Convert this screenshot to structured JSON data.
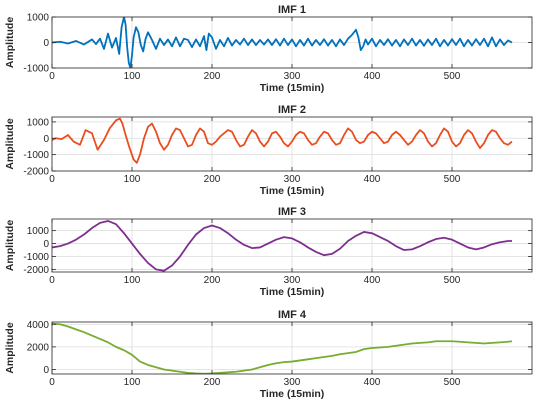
{
  "chart_data": [
    {
      "type": "line",
      "title": "IMF 1",
      "xlabel": "Time (15min)",
      "ylabel": "Amplitude",
      "xlim": [
        0,
        600
      ],
      "ylim": [
        -1000,
        1000
      ],
      "xticks": [
        0,
        100,
        200,
        300,
        400,
        500
      ],
      "yticks": [
        -1000,
        0,
        1000
      ],
      "grid": true,
      "color": "#0072BD",
      "series": [
        {
          "x": [
            0,
            10,
            20,
            30,
            40,
            50,
            55,
            60,
            65,
            70,
            75,
            80,
            84,
            87,
            90,
            92,
            94,
            96,
            98,
            100,
            102,
            105,
            108,
            111,
            114,
            117,
            120,
            125,
            130,
            135,
            140,
            145,
            150,
            155,
            160,
            165,
            170,
            175,
            180,
            185,
            190,
            193,
            196,
            200,
            205,
            210,
            215,
            220,
            225,
            230,
            235,
            240,
            245,
            250,
            255,
            260,
            265,
            270,
            275,
            280,
            285,
            290,
            295,
            300,
            305,
            310,
            315,
            320,
            325,
            330,
            335,
            340,
            345,
            350,
            355,
            360,
            365,
            370,
            375,
            380,
            383,
            386,
            389,
            392,
            395,
            400,
            405,
            410,
            415,
            420,
            425,
            430,
            435,
            440,
            445,
            450,
            455,
            460,
            465,
            470,
            475,
            480,
            485,
            490,
            495,
            500,
            505,
            510,
            515,
            520,
            525,
            530,
            535,
            540,
            545,
            550,
            555,
            560,
            565,
            570,
            575
          ],
          "y": [
            0,
            30,
            -40,
            60,
            -80,
            120,
            -60,
            150,
            -250,
            350,
            -200,
            180,
            -450,
            600,
            1000,
            700,
            -200,
            -800,
            -1000,
            -500,
            200,
            600,
            400,
            -100,
            -350,
            150,
            400,
            100,
            -250,
            150,
            -100,
            120,
            -150,
            200,
            -150,
            150,
            100,
            -180,
            120,
            -150,
            250,
            -300,
            350,
            200,
            -250,
            100,
            -150,
            180,
            -120,
            100,
            -80,
            150,
            -100,
            120,
            -100,
            100,
            -80,
            120,
            -100,
            130,
            -120,
            150,
            -100,
            120,
            -150,
            100,
            -120,
            150,
            -120,
            100,
            -100,
            130,
            -120,
            100,
            -150,
            120,
            -100,
            150,
            300,
            500,
            200,
            -300,
            -150,
            120,
            -80,
            150,
            -150,
            100,
            -100,
            130,
            -120,
            100,
            -150,
            120,
            -100,
            150,
            -120,
            100,
            -130,
            120,
            -100,
            150,
            -150,
            100,
            -120,
            130,
            -100,
            150,
            -150,
            100,
            -120,
            130,
            -100,
            150,
            -150,
            200,
            -150,
            120,
            -100,
            80,
            0
          ]
        }
      ]
    },
    {
      "type": "line",
      "title": "IMF 2",
      "xlabel": "Time (15min)",
      "ylabel": "Amplitude",
      "xlim": [
        0,
        600
      ],
      "ylim": [
        -2000,
        1300
      ],
      "xticks": [
        0,
        100,
        200,
        300,
        400,
        500
      ],
      "yticks": [
        -2000,
        -1000,
        0,
        1000
      ],
      "grid": true,
      "color": "#EB4E1E",
      "series": [
        {
          "x": [
            0,
            5,
            12,
            20,
            27,
            35,
            42,
            50,
            57,
            65,
            72,
            80,
            85,
            88,
            92,
            97,
            102,
            106,
            110,
            115,
            120,
            125,
            130,
            135,
            140,
            145,
            150,
            155,
            160,
            165,
            170,
            175,
            180,
            185,
            190,
            195,
            200,
            205,
            210,
            215,
            220,
            225,
            230,
            235,
            240,
            245,
            250,
            255,
            260,
            265,
            270,
            275,
            280,
            285,
            290,
            295,
            300,
            305,
            310,
            315,
            320,
            325,
            330,
            335,
            340,
            345,
            350,
            355,
            360,
            365,
            370,
            375,
            380,
            385,
            390,
            395,
            400,
            405,
            410,
            415,
            420,
            425,
            430,
            435,
            440,
            445,
            450,
            455,
            460,
            465,
            470,
            475,
            480,
            485,
            490,
            495,
            500,
            505,
            510,
            515,
            520,
            525,
            530,
            535,
            540,
            545,
            550,
            555,
            560,
            565,
            570,
            575
          ],
          "y": [
            -100,
            0,
            -50,
            200,
            -200,
            -400,
            500,
            300,
            -700,
            -100,
            600,
            1100,
            1200,
            900,
            200,
            -600,
            -1300,
            -1500,
            -1000,
            0,
            700,
            900,
            400,
            -300,
            -700,
            -400,
            200,
            600,
            500,
            0,
            -500,
            -400,
            200,
            600,
            400,
            -300,
            -400,
            -200,
            100,
            300,
            500,
            400,
            -100,
            -500,
            -400,
            100,
            500,
            300,
            -200,
            -500,
            -200,
            300,
            400,
            100,
            -300,
            -500,
            -200,
            200,
            400,
            300,
            -100,
            -400,
            -300,
            100,
            400,
            300,
            -100,
            -400,
            -300,
            200,
            600,
            400,
            -100,
            -300,
            -200,
            200,
            400,
            300,
            0,
            -300,
            -200,
            200,
            400,
            200,
            -100,
            -400,
            -200,
            200,
            500,
            300,
            -200,
            -500,
            -300,
            200,
            600,
            400,
            -200,
            -500,
            -300,
            200,
            500,
            300,
            -200,
            -600,
            -300,
            200,
            500,
            400,
            0,
            -300,
            -400,
            -200
          ]
        }
      ]
    },
    {
      "type": "line",
      "title": "IMF 3",
      "xlabel": "Time (15min)",
      "ylabel": "Amplitude",
      "xlim": [
        0,
        600
      ],
      "ylim": [
        -2200,
        1900
      ],
      "xticks": [
        0,
        100,
        200,
        300,
        400,
        500
      ],
      "yticks": [
        -2000,
        -1000,
        0,
        1000
      ],
      "grid": true,
      "color": "#7E2F8E",
      "series": [
        {
          "x": [
            0,
            10,
            20,
            30,
            40,
            50,
            60,
            70,
            80,
            90,
            100,
            110,
            120,
            130,
            140,
            150,
            160,
            170,
            180,
            190,
            200,
            210,
            220,
            230,
            240,
            250,
            260,
            270,
            280,
            290,
            300,
            310,
            320,
            330,
            340,
            350,
            360,
            370,
            380,
            390,
            400,
            410,
            420,
            430,
            440,
            450,
            460,
            470,
            480,
            490,
            500,
            510,
            520,
            530,
            540,
            550,
            560,
            570,
            575
          ],
          "y": [
            -300,
            -200,
            0,
            300,
            700,
            1200,
            1600,
            1750,
            1500,
            800,
            0,
            -800,
            -1500,
            -2000,
            -2100,
            -1700,
            -1000,
            -100,
            700,
            1200,
            1400,
            1200,
            800,
            300,
            -100,
            -350,
            -300,
            0,
            300,
            500,
            400,
            100,
            -300,
            -650,
            -900,
            -800,
            -400,
            200,
            600,
            900,
            800,
            500,
            200,
            -200,
            -500,
            -450,
            -200,
            100,
            350,
            450,
            300,
            0,
            -300,
            -450,
            -300,
            -50,
            100,
            200,
            200
          ]
        }
      ]
    },
    {
      "type": "line",
      "title": "IMF 4",
      "xlabel": "Time (15min)",
      "ylabel": "Amplitude",
      "xlim": [
        0,
        600
      ],
      "ylim": [
        -400,
        4200
      ],
      "xticks": [
        0,
        100,
        200,
        300,
        400,
        500
      ],
      "yticks": [
        0,
        2000,
        4000
      ],
      "grid": true,
      "color": "#77AC30",
      "series": [
        {
          "x": [
            0,
            10,
            20,
            30,
            40,
            50,
            60,
            70,
            80,
            90,
            100,
            110,
            120,
            130,
            140,
            150,
            160,
            170,
            180,
            190,
            200,
            210,
            220,
            230,
            240,
            250,
            260,
            270,
            280,
            290,
            300,
            310,
            320,
            330,
            340,
            350,
            360,
            370,
            380,
            390,
            400,
            410,
            420,
            430,
            440,
            450,
            460,
            470,
            480,
            490,
            500,
            510,
            520,
            530,
            540,
            550,
            560,
            570,
            575
          ],
          "y": [
            4050,
            4000,
            3800,
            3550,
            3300,
            3000,
            2700,
            2400,
            2000,
            1700,
            1300,
            700,
            400,
            200,
            0,
            -100,
            -200,
            -300,
            -350,
            -380,
            -350,
            -300,
            -250,
            -200,
            -100,
            0,
            200,
            400,
            550,
            650,
            700,
            800,
            900,
            1000,
            1100,
            1200,
            1350,
            1450,
            1550,
            1800,
            1900,
            1950,
            2000,
            2100,
            2200,
            2300,
            2350,
            2400,
            2500,
            2500,
            2500,
            2450,
            2400,
            2350,
            2300,
            2350,
            2400,
            2450,
            2500
          ]
        }
      ]
    }
  ]
}
